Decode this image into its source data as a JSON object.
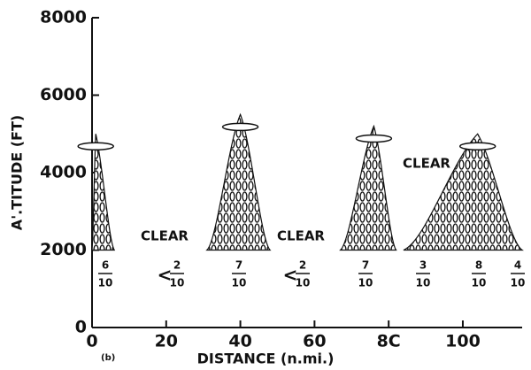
{
  "chart_data": {
    "type": "cloud-section",
    "xlabel": "DISTANCE (n.mi.)",
    "ylabel": "A'.TITUDE (FT)",
    "panel_label": "(b)",
    "xlim": [
      0,
      116
    ],
    "ylim": [
      0,
      8000
    ],
    "xticks": [
      0,
      20,
      40,
      60,
      {
        "value": 80,
        "label": "8C"
      },
      100
    ],
    "yticks": [
      0,
      2000,
      4000,
      6000,
      8000
    ],
    "color": "#111111",
    "clouds": [
      {
        "start": 0,
        "peak": 1,
        "end": 6,
        "base": 2000,
        "top": 5000
      },
      {
        "start": 31,
        "peak": 40,
        "end": 48,
        "base": 2000,
        "top": 5500
      },
      {
        "start": 67,
        "peak": 76,
        "end": 82,
        "base": 2000,
        "top": 5200
      },
      {
        "start": 84,
        "peak": 104,
        "end": 116,
        "base": 2000,
        "top": 5000
      }
    ],
    "clear_labels": [
      "CLEAR",
      "CLEAR",
      "CLEAR"
    ],
    "fractions": [
      {
        "num": "6",
        "den": "10"
      },
      {
        "prefix": "<",
        "num": "2",
        "den": "10"
      },
      {
        "num": "7",
        "den": "10"
      },
      {
        "prefix": "<",
        "num": "2",
        "den": "10"
      },
      {
        "num": "7",
        "den": "10"
      },
      {
        "num": "3",
        "den": "10"
      },
      {
        "num": "8",
        "den": "10"
      },
      {
        "num": "4",
        "den": "10"
      }
    ]
  }
}
